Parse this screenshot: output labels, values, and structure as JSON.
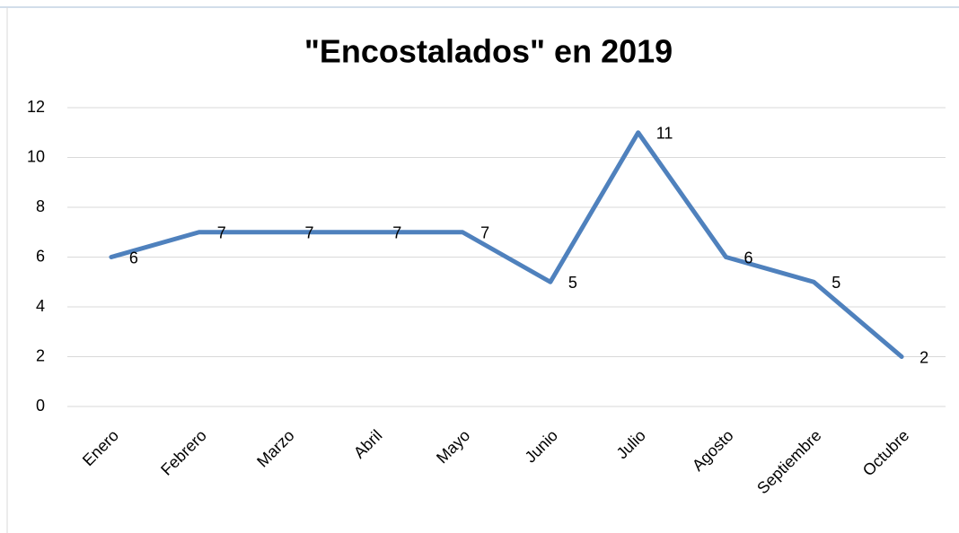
{
  "chart_data": {
    "type": "line",
    "title": "\"Encostalados\" en 2019",
    "categories": [
      "Enero",
      "Febrero",
      "Marzo",
      "Abril",
      "Mayo",
      "Junio",
      "Julio",
      "Agosto",
      "Septiembre",
      "Octubre"
    ],
    "values": [
      6,
      7,
      7,
      7,
      7,
      5,
      11,
      6,
      5,
      2
    ],
    "color": "#4f81bd",
    "ylim": [
      0,
      12
    ],
    "yticks": [
      0,
      2,
      4,
      6,
      8,
      10,
      12
    ],
    "grid": true
  }
}
